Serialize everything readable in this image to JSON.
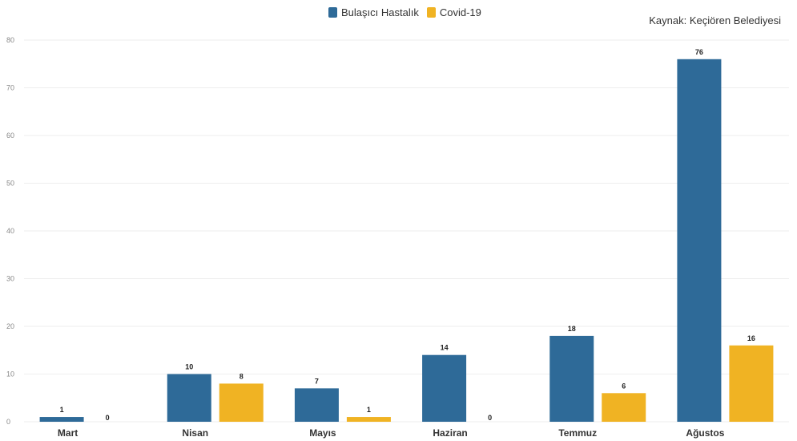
{
  "legend": {
    "series_a": "Bulaşıcı Hastalık",
    "series_b": "Covid-19"
  },
  "source": "Kaynak: Keçiören Belediyesi",
  "colors": {
    "series_a": "#2e6a98",
    "series_b": "#f0b323",
    "grid": "#eeeeee"
  },
  "chart_data": {
    "type": "bar",
    "categories": [
      "Mart",
      "Nisan",
      "Mayıs",
      "Haziran",
      "Temmuz",
      "Ağustos"
    ],
    "series": [
      {
        "name": "Bulaşıcı Hastalık",
        "values": [
          1,
          10,
          7,
          14,
          18,
          76
        ]
      },
      {
        "name": "Covid-19",
        "values": [
          0,
          8,
          1,
          0,
          6,
          16
        ]
      }
    ],
    "yticks": [
      0,
      10,
      20,
      30,
      40,
      50,
      60,
      70,
      80
    ],
    "ylim": [
      0,
      80
    ],
    "grid": true,
    "legend_position": "top-center"
  }
}
